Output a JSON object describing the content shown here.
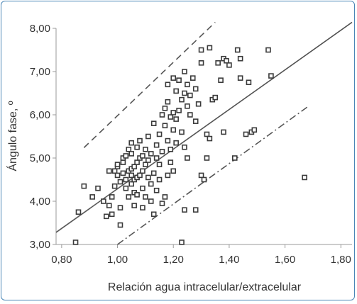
{
  "chart_data": {
    "type": "scatter",
    "xlabel": "Relación agua intracelular/extracelular",
    "ylabel": "Ángulo fase, º",
    "xlim": [
      0.78,
      1.84
    ],
    "ylim": [
      3.0,
      8.0
    ],
    "x_ticks": [
      "0,80",
      "1,00",
      "1,20",
      "1,40",
      "1,60",
      "1,80"
    ],
    "x_tick_values": [
      0.8,
      1.0,
      1.2,
      1.4,
      1.6,
      1.8
    ],
    "y_ticks": [
      "8,00",
      "7,00",
      "6,00",
      "5,00",
      "4,00",
      "3,00"
    ],
    "y_tick_values": [
      8.0,
      7.0,
      6.0,
      5.0,
      4.0,
      3.0
    ],
    "grid": false,
    "legend": "none",
    "marker": "open-square",
    "marker_color": "#3a3a3a",
    "line_color": "#555555",
    "lines": [
      {
        "kind": "solid",
        "x": [
          0.78,
          1.84
        ],
        "y": [
          3.28,
          8.14
        ]
      },
      {
        "kind": "dash",
        "x": [
          0.88,
          1.35
        ],
        "y": [
          5.24,
          8.14
        ]
      },
      {
        "kind": "dashdot",
        "x": [
          1.0,
          1.68
        ],
        "y": [
          3.0,
          6.18
        ]
      }
    ],
    "points": [
      [
        0.85,
        3.05
      ],
      [
        0.86,
        3.75
      ],
      [
        0.88,
        4.35
      ],
      [
        0.91,
        4.1
      ],
      [
        0.93,
        4.3
      ],
      [
        0.95,
        4.0
      ],
      [
        0.96,
        3.65
      ],
      [
        0.97,
        3.9
      ],
      [
        0.97,
        4.7
      ],
      [
        0.98,
        3.7
      ],
      [
        0.98,
        4.1
      ],
      [
        0.99,
        4.35
      ],
      [
        0.99,
        4.7
      ],
      [
        1.0,
        4.6
      ],
      [
        1.0,
        4.8
      ],
      [
        1.0,
        4.85
      ],
      [
        1.01,
        3.45
      ],
      [
        1.01,
        3.85
      ],
      [
        1.01,
        4.45
      ],
      [
        1.02,
        4.65
      ],
      [
        1.02,
        4.9
      ],
      [
        1.02,
        5.0
      ],
      [
        1.03,
        4.3
      ],
      [
        1.03,
        4.5
      ],
      [
        1.03,
        5.05
      ],
      [
        1.04,
        4.1
      ],
      [
        1.04,
        4.7
      ],
      [
        1.04,
        5.2
      ],
      [
        1.05,
        4.4
      ],
      [
        1.05,
        4.6
      ],
      [
        1.05,
        4.75
      ],
      [
        1.05,
        5.1
      ],
      [
        1.05,
        5.35
      ],
      [
        1.06,
        3.9
      ],
      [
        1.06,
        4.2
      ],
      [
        1.06,
        4.5
      ],
      [
        1.06,
        4.8
      ],
      [
        1.07,
        4.15
      ],
      [
        1.07,
        4.55
      ],
      [
        1.07,
        4.9
      ],
      [
        1.07,
        5.25
      ],
      [
        1.08,
        4.6
      ],
      [
        1.08,
        5.0
      ],
      [
        1.08,
        5.4
      ],
      [
        1.09,
        3.85
      ],
      [
        1.09,
        4.3
      ],
      [
        1.09,
        4.7
      ],
      [
        1.09,
        5.05
      ],
      [
        1.1,
        4.1
      ],
      [
        1.1,
        4.85
      ],
      [
        1.1,
        5.2
      ],
      [
        1.11,
        4.55
      ],
      [
        1.11,
        4.95
      ],
      [
        1.11,
        5.5
      ],
      [
        1.12,
        4.0
      ],
      [
        1.12,
        4.4
      ],
      [
        1.12,
        5.1
      ],
      [
        1.13,
        3.7
      ],
      [
        1.13,
        4.65
      ],
      [
        1.13,
        5.8
      ],
      [
        1.14,
        4.25
      ],
      [
        1.14,
        5.0
      ],
      [
        1.14,
        5.3
      ],
      [
        1.15,
        4.5
      ],
      [
        1.15,
        4.85
      ],
      [
        1.15,
        5.55
      ],
      [
        1.16,
        3.95
      ],
      [
        1.16,
        5.15
      ],
      [
        1.16,
        6.0
      ],
      [
        1.17,
        4.1
      ],
      [
        1.17,
        5.75
      ],
      [
        1.17,
        6.15
      ],
      [
        1.18,
        4.6
      ],
      [
        1.18,
        5.4
      ],
      [
        1.18,
        6.3
      ],
      [
        1.18,
        6.7
      ],
      [
        1.19,
        4.9
      ],
      [
        1.19,
        5.2
      ],
      [
        1.19,
        5.95
      ],
      [
        1.2,
        4.7
      ],
      [
        1.2,
        5.65
      ],
      [
        1.2,
        6.05
      ],
      [
        1.2,
        6.85
      ],
      [
        1.21,
        5.35
      ],
      [
        1.21,
        5.9
      ],
      [
        1.21,
        6.55
      ],
      [
        1.22,
        6.1
      ],
      [
        1.22,
        6.8
      ],
      [
        1.23,
        3.05
      ],
      [
        1.23,
        5.6
      ],
      [
        1.23,
        6.35
      ],
      [
        1.24,
        3.8
      ],
      [
        1.24,
        5.25
      ],
      [
        1.24,
        6.5
      ],
      [
        1.24,
        7.0
      ],
      [
        1.25,
        5.0
      ],
      [
        1.25,
        6.2
      ],
      [
        1.25,
        6.7
      ],
      [
        1.26,
        6.0
      ],
      [
        1.26,
        6.45
      ],
      [
        1.27,
        6.85
      ],
      [
        1.28,
        3.8
      ],
      [
        1.28,
        5.85
      ],
      [
        1.28,
        6.6
      ],
      [
        1.29,
        6.25
      ],
      [
        1.3,
        4.6
      ],
      [
        1.3,
        7.2
      ],
      [
        1.3,
        7.5
      ],
      [
        1.31,
        4.5
      ],
      [
        1.32,
        5.0
      ],
      [
        1.32,
        5.55
      ],
      [
        1.33,
        5.45
      ],
      [
        1.33,
        7.55
      ],
      [
        1.34,
        6.35
      ],
      [
        1.35,
        6.4
      ],
      [
        1.36,
        7.2
      ],
      [
        1.37,
        6.8
      ],
      [
        1.38,
        5.6
      ],
      [
        1.38,
        7.3
      ],
      [
        1.39,
        7.25
      ],
      [
        1.4,
        7.15
      ],
      [
        1.42,
        5.0
      ],
      [
        1.43,
        7.5
      ],
      [
        1.44,
        7.3
      ],
      [
        1.44,
        6.85
      ],
      [
        1.46,
        5.55
      ],
      [
        1.47,
        6.75
      ],
      [
        1.48,
        5.6
      ],
      [
        1.49,
        5.65
      ],
      [
        1.54,
        7.5
      ],
      [
        1.55,
        6.9
      ],
      [
        1.67,
        4.55
      ]
    ]
  }
}
